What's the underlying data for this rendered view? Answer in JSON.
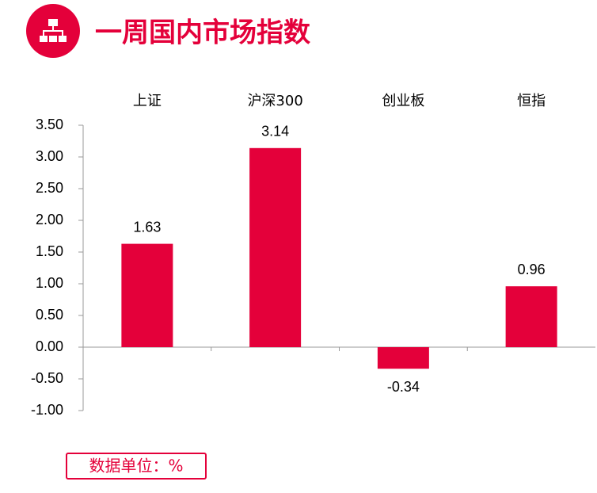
{
  "header": {
    "title": "一周国内市场指数"
  },
  "chart_data": {
    "type": "bar",
    "categories": [
      "上证",
      "沪深300",
      "创业板",
      "恒指"
    ],
    "values": [
      1.63,
      3.14,
      -0.34,
      0.96
    ],
    "color": "#e4003a",
    "ylim": [
      -1.0,
      3.5
    ],
    "yticks": [
      {
        "value": -1.0,
        "label": "-1.00"
      },
      {
        "value": -0.5,
        "label": "-0.50"
      },
      {
        "value": 0,
        "label": "0.00"
      },
      {
        "value": 0.5,
        "label": "0.50"
      },
      {
        "value": 1.0,
        "label": "1.00"
      },
      {
        "value": 1.5,
        "label": "1.50"
      },
      {
        "value": 2.0,
        "label": "2.00"
      },
      {
        "value": 2.5,
        "label": "2.50"
      },
      {
        "value": 3.0,
        "label": "3.00"
      },
      {
        "value": 3.5,
        "label": "3.50"
      }
    ],
    "grid": false
  },
  "footer": {
    "unit_note": "数据单位：%"
  }
}
